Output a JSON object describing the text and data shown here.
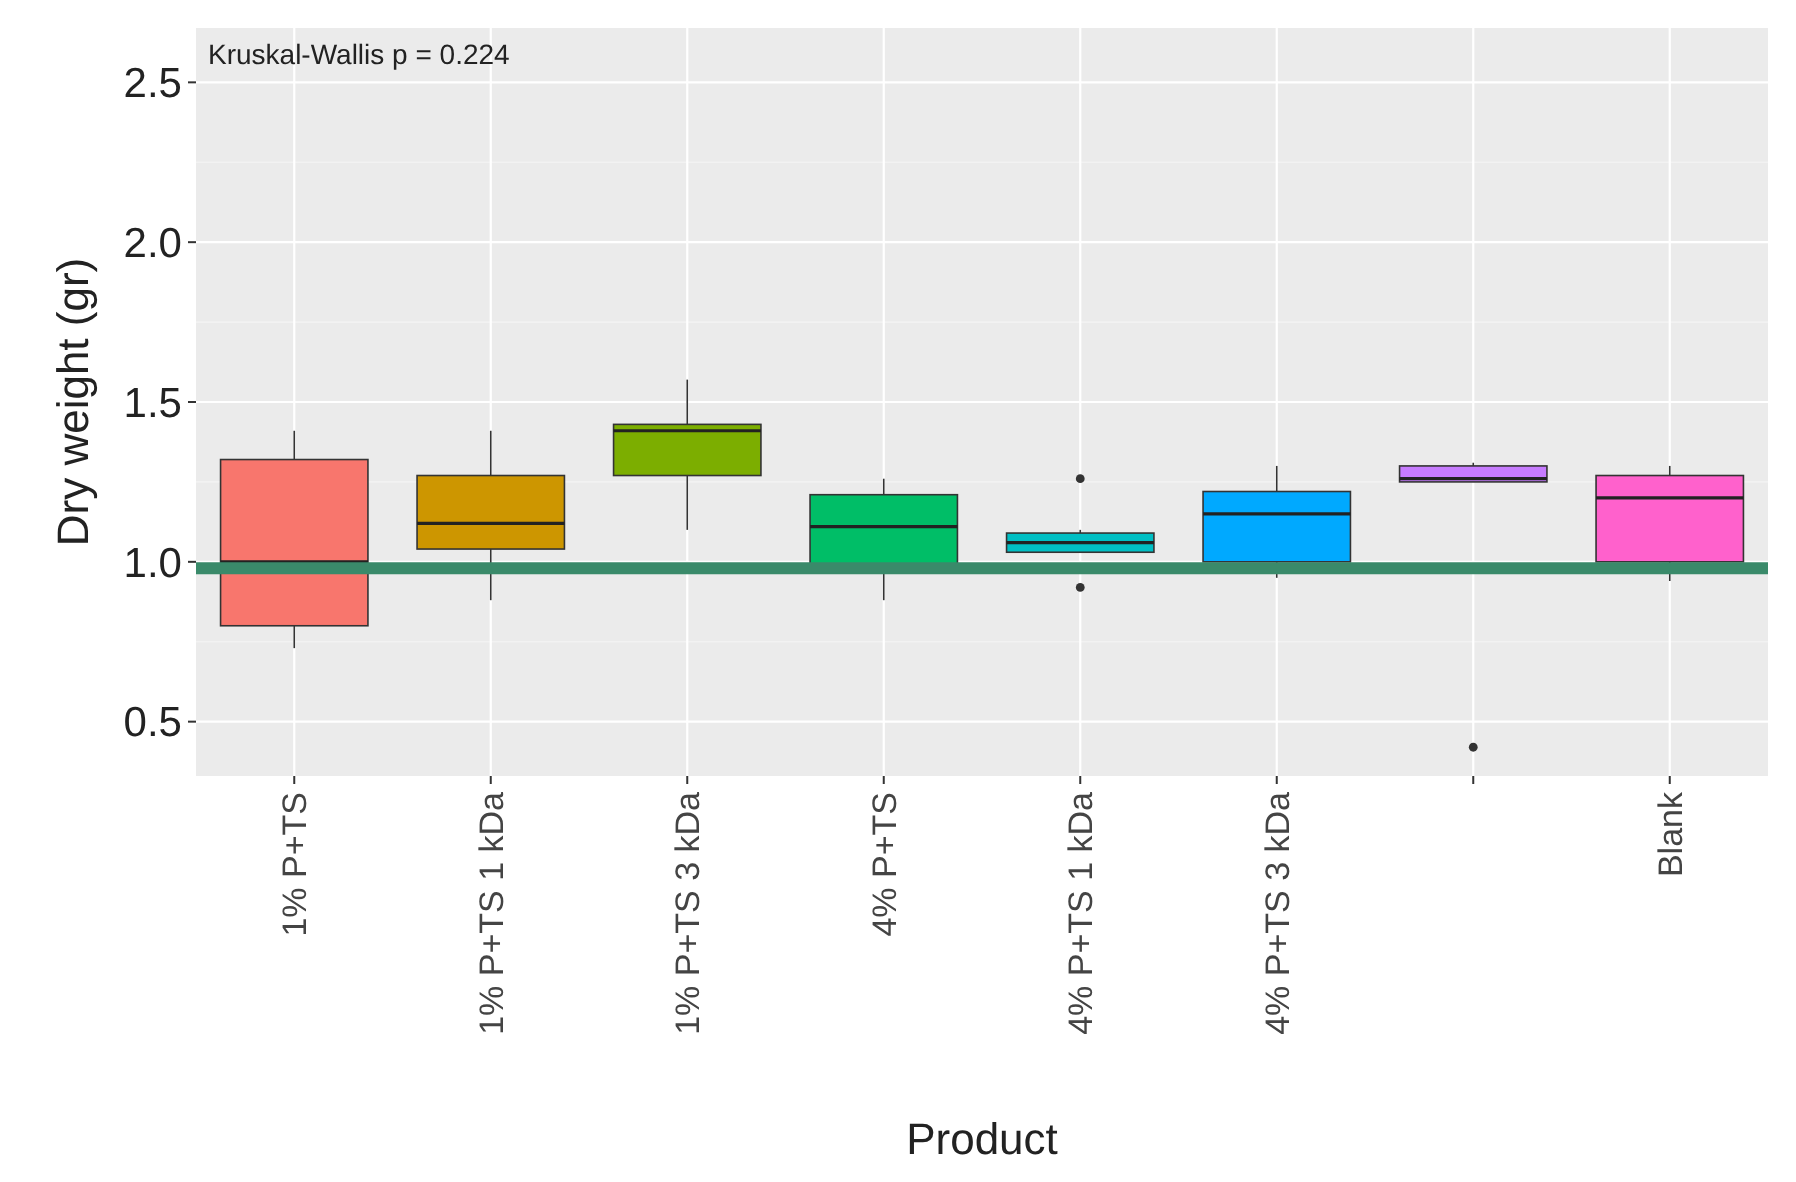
{
  "chart_data": {
    "type": "box",
    "xlabel": "Product",
    "ylabel": "Dry weight (gr)",
    "categories": [
      "1% P+TS",
      "1% P+TS 1 kDa",
      "1% P+TS 3 kDa",
      "4% P+TS",
      "4% P+TS 1 kDa",
      "4% P+TS 3 kDa",
      null,
      "Blank"
    ],
    "colors": [
      "#f8766d",
      "#cd9600",
      "#7cae00",
      "#00be67",
      "#00bfc4",
      "#00a9ff",
      "#c77cff",
      "#ff61cc"
    ],
    "boxes": [
      {
        "low": 0.73,
        "q1": 0.8,
        "median": 1.0,
        "q3": 1.32,
        "high": 1.41
      },
      {
        "low": 0.88,
        "q1": 1.04,
        "median": 1.12,
        "q3": 1.27,
        "high": 1.41
      },
      {
        "low": 1.1,
        "q1": 1.27,
        "median": 1.41,
        "q3": 1.43,
        "high": 1.57
      },
      {
        "low": 0.88,
        "q1": 0.99,
        "median": 1.11,
        "q3": 1.21,
        "high": 1.26
      },
      {
        "low": 1.03,
        "q1": 1.03,
        "median": 1.06,
        "q3": 1.09,
        "high": 1.1,
        "outliers": [
          1.26,
          0.92
        ]
      },
      {
        "low": 0.95,
        "q1": 1.0,
        "median": 1.15,
        "q3": 1.22,
        "high": 1.3
      },
      {
        "low": 1.25,
        "q1": 1.25,
        "median": 1.26,
        "q3": 1.3,
        "high": 1.31,
        "outliers": [
          0.42
        ]
      },
      {
        "low": 0.94,
        "q1": 1.0,
        "median": 1.2,
        "q3": 1.27,
        "high": 1.3
      }
    ],
    "ylim": [
      0.33,
      2.67
    ],
    "yticks": [
      0.5,
      {
        "value": 1,
        "label": "1.0"
      },
      1.5,
      {
        "value": 2,
        "label": "2.0"
      },
      2.5
    ],
    "grid": true,
    "ref_lines": [
      {
        "axis": "y",
        "value": 0.98,
        "color": "#3a8a6a"
      }
    ],
    "annotations": [
      "Kruskal-Wallis p = 0.224"
    ]
  }
}
